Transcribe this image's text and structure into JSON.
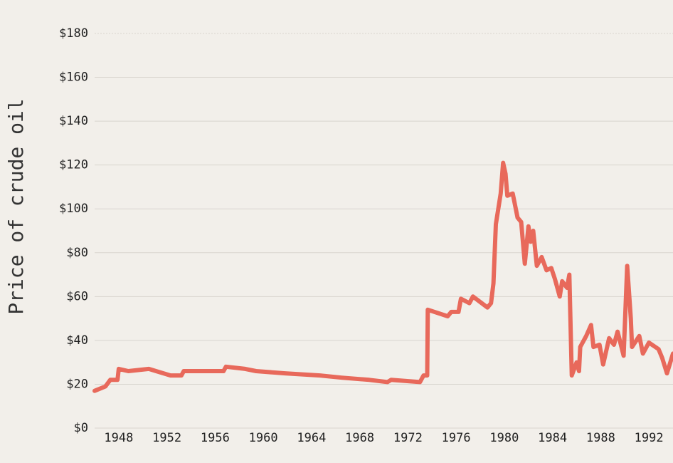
{
  "chart_data": {
    "type": "line",
    "y_label": "Price of crude oil",
    "color": "#e8695b",
    "grid": true,
    "xlim": [
      1946,
      1994
    ],
    "xticks": [
      1948,
      1952,
      1956,
      1960,
      1964,
      1968,
      1972,
      1976,
      1980,
      1984,
      1988,
      1992
    ],
    "ylim": [
      0,
      180
    ],
    "yticks": [
      {
        "value": 0,
        "label": "$0"
      },
      {
        "value": 20,
        "label": "$20"
      },
      {
        "value": 40,
        "label": "$40"
      },
      {
        "value": 60,
        "label": "$60"
      },
      {
        "value": 80,
        "label": "$80"
      },
      {
        "value": 100,
        "label": "$100"
      },
      {
        "value": 120,
        "label": "$120"
      },
      {
        "value": 140,
        "label": "$140"
      },
      {
        "value": 160,
        "label": "$160"
      },
      {
        "value": 180,
        "label": "$180"
      }
    ],
    "x": [
      1946.0,
      1946.9,
      1947.3,
      1947.9,
      1948.0,
      1948.8,
      1950.5,
      1951.1,
      1952.3,
      1953.2,
      1953.4,
      1956.7,
      1956.9,
      1958.5,
      1959.4,
      1961.8,
      1964.7,
      1966.5,
      1968.8,
      1970.3,
      1970.6,
      1973.0,
      1973.3,
      1973.6,
      1973.65,
      1975.3,
      1975.6,
      1976.2,
      1976.4,
      1977.1,
      1977.4,
      1978.6,
      1978.9,
      1979.1,
      1979.3,
      1979.7,
      1979.9,
      1980.1,
      1980.25,
      1980.7,
      1981.1,
      1981.4,
      1981.7,
      1982.0,
      1982.2,
      1982.4,
      1982.7,
      1983.1,
      1983.5,
      1983.9,
      1984.2,
      1984.6,
      1984.8,
      1985.2,
      1985.4,
      1985.6,
      1986.0,
      1986.2,
      1986.3,
      1986.8,
      1987.2,
      1987.4,
      1987.9,
      1988.2,
      1988.7,
      1989.1,
      1989.4,
      1989.9,
      1990.2,
      1990.5,
      1990.6,
      1991.2,
      1991.5,
      1992.0,
      1992.8,
      1993.1,
      1993.5,
      1994.0
    ],
    "values": [
      17,
      19,
      22,
      22,
      27,
      26,
      27,
      26,
      24,
      24,
      26,
      26,
      28,
      27,
      26,
      25,
      24,
      23,
      22,
      21,
      22,
      21,
      24,
      24,
      54,
      51,
      53,
      53,
      59,
      57,
      60,
      55,
      57,
      66,
      93,
      107,
      121,
      116,
      106,
      107,
      96,
      94,
      75,
      92,
      85,
      90,
      74,
      78,
      72,
      73,
      68,
      60,
      67,
      64,
      70,
      24,
      30,
      26,
      37,
      42,
      47,
      37,
      38,
      29,
      41,
      38,
      44,
      33,
      74,
      50,
      37,
      42,
      34,
      39,
      36,
      32,
      25,
      34
    ]
  }
}
